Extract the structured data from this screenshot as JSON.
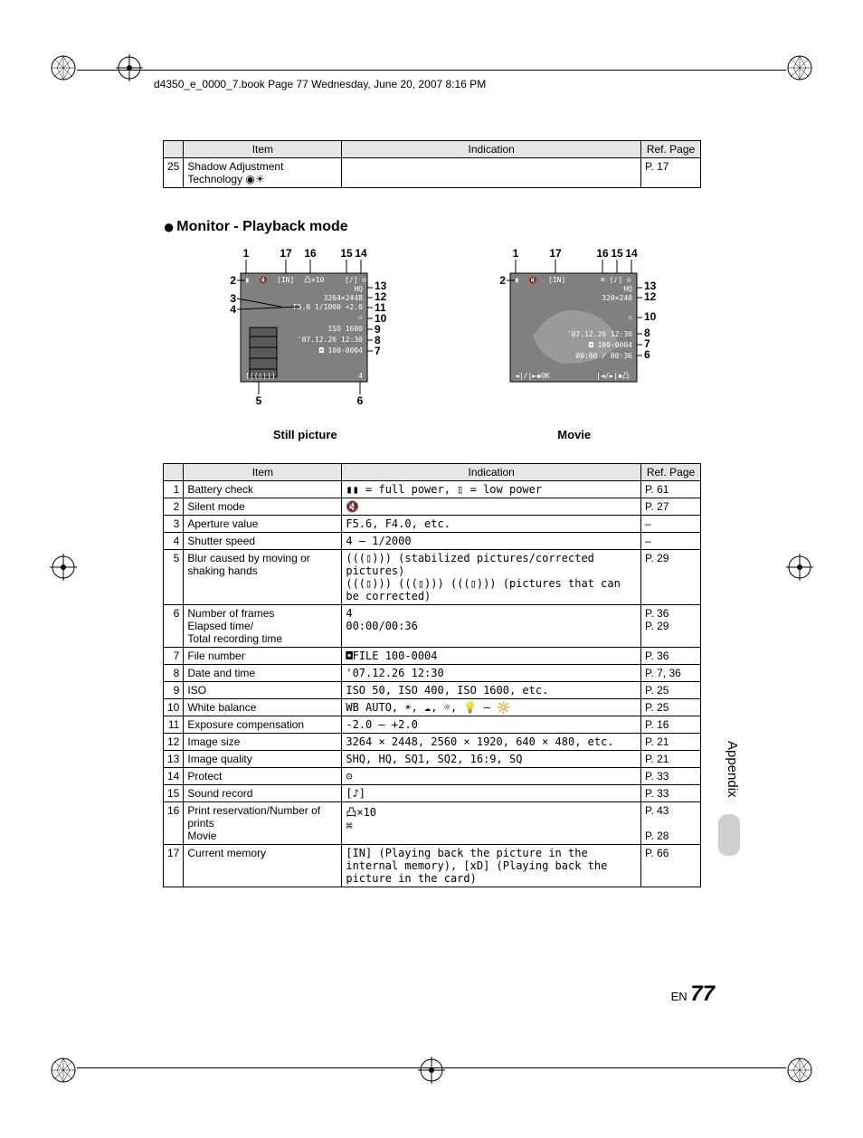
{
  "meta": {
    "header": "d4350_e_0000_7.book  Page 77  Wednesday, June 20, 2007  8:16 PM",
    "page_prefix": "EN",
    "page_number": "77",
    "side_label": "Appendix"
  },
  "top_table": {
    "headers": [
      "",
      "Item",
      "Indication",
      "Ref. Page"
    ],
    "row_num": "25",
    "row_item": "Shadow Adjustment Technology",
    "row_icon": "◉☀",
    "row_ind": "",
    "row_ref": "P.  17"
  },
  "section": {
    "heading": "Monitor - Playback mode",
    "caption_left": "Still picture",
    "caption_right": "Movie"
  },
  "diagram_left": {
    "top_labels": [
      "1",
      "17",
      "16",
      "15",
      "14"
    ],
    "left_labels": [
      "2",
      "3",
      "4"
    ],
    "right_labels": [
      "13",
      "12",
      "11",
      "10",
      "9",
      "8",
      "7"
    ],
    "bottom_labels": [
      "5",
      "6"
    ],
    "lines": [
      "[IN]  凸×10",
      "HQ",
      "3264×2448",
      "F5.6 1/1000 +2.0",
      "☼",
      "ISO 1600",
      "'07.12.26 12:30",
      "◘ 100-0004",
      "4"
    ]
  },
  "diagram_right": {
    "top_labels": [
      "1",
      "17",
      "16",
      "15",
      "14"
    ],
    "left_labels": [
      "2"
    ],
    "right_labels": [
      "13",
      "12",
      "10",
      "8",
      "7",
      "6"
    ],
    "lines": [
      "[IN]",
      "HQ",
      "320×240",
      "☼",
      "'07.12.26 12:30",
      "◘ 100-0004",
      "00:00 / 00:36",
      "◄ | / | ► ◆ OK    |◄ / ►| ◆ 凸"
    ]
  },
  "main_table": {
    "headers": [
      "",
      "Item",
      "Indication",
      "Ref. Page"
    ],
    "rows": [
      {
        "n": "1",
        "item": "Battery check",
        "ind": "▮▮ = full power, ▯ = low power",
        "ref": "P. 61"
      },
      {
        "n": "2",
        "item": "Silent mode",
        "ind": "🔇",
        "ref": "P. 27"
      },
      {
        "n": "3",
        "item": "Aperture value",
        "ind": "F5.6, F4.0, etc.",
        "ref": "–"
      },
      {
        "n": "4",
        "item": "Shutter speed",
        "ind": "4 – 1/2000",
        "ref": "–"
      },
      {
        "n": "5",
        "item": "Blur caused by moving or shaking hands",
        "ind": "(((▯))) (stabilized pictures/corrected pictures)\n(((▯))) (((▯))) (((▯))) (pictures that can be corrected)",
        "ref": "P. 29"
      },
      {
        "n": "6",
        "item": "Number of frames\nElapsed time/\nTotal recording time",
        "ind": "4\n00:00/00:36",
        "ref": "P. 36\nP. 29"
      },
      {
        "n": "7",
        "item": "File number",
        "ind": "◘FILE 100-0004",
        "ref": "P. 36"
      },
      {
        "n": "8",
        "item": "Date and time",
        "ind": "'07.12.26 12:30",
        "ref": "P. 7, 36"
      },
      {
        "n": "9",
        "item": "ISO",
        "ind": "ISO 50, ISO 400, ISO 1600, etc.",
        "ref": "P. 25"
      },
      {
        "n": "10",
        "item": "White balance",
        "ind": "WB AUTO, ☀, ☁, ☼, 💡 – 🔆",
        "ref": "P. 25"
      },
      {
        "n": "11",
        "item": "Exposure compensation",
        "ind": "-2.0 – +2.0",
        "ref": "P. 16"
      },
      {
        "n": "12",
        "item": "Image size",
        "ind": "3264 × 2448, 2560 × 1920, 640 × 480, etc.",
        "ref": "P. 21"
      },
      {
        "n": "13",
        "item": "Image quality",
        "ind": "SHQ, HQ, SQ1, SQ2, 16:9, SQ",
        "ref": "P. 21"
      },
      {
        "n": "14",
        "item": "Protect",
        "ind": "⊝",
        "ref": "P. 33"
      },
      {
        "n": "15",
        "item": "Sound record",
        "ind": "[♪]",
        "ref": "P. 33"
      },
      {
        "n": "16",
        "item": "Print reservation/Number of prints\nMovie",
        "ind": "凸×10\n⌘",
        "ref": "P. 43\n\nP. 28"
      },
      {
        "n": "17",
        "item": "Current memory",
        "ind": "[IN] (Playing back the picture in the internal memory), [xD] (Playing back the picture in the card)",
        "ref": "P. 66"
      }
    ]
  }
}
